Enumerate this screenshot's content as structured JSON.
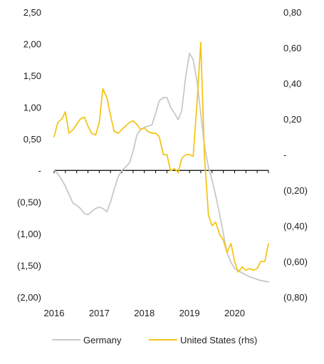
{
  "chart_data": {
    "type": "line",
    "title": "",
    "legend_position": "bottom",
    "grid": false,
    "x": {
      "tick_labels": [
        "2016",
        "2017",
        "2018",
        "2019",
        "2020"
      ],
      "range": [
        2016.0,
        2020.75
      ]
    },
    "y_left": {
      "range": [
        -2.0,
        2.5
      ],
      "ticks": [
        2.5,
        2.0,
        1.5,
        1.0,
        0.5,
        0.0,
        -0.5,
        -1.0,
        -1.5,
        -2.0
      ],
      "tick_labels": [
        "2,50",
        "2,00",
        "1,50",
        "1,00",
        "0,50",
        "-",
        "(0,50)",
        "(1,00)",
        "(1,50)",
        "(2,00)"
      ]
    },
    "y_right": {
      "range": [
        -0.8,
        0.8
      ],
      "ticks": [
        0.8,
        0.6,
        0.4,
        0.2,
        0.0,
        -0.2,
        -0.4,
        -0.6,
        -0.8
      ],
      "tick_labels": [
        "0,80",
        "0,60",
        "0,40",
        "0,20",
        "-",
        "(0,20)",
        "(0,40)",
        "(0,60)",
        "(0,80)"
      ]
    },
    "series": [
      {
        "name": "Germany",
        "axis": "left",
        "color": "#c8c8c8",
        "x": [
          2016.0,
          2016.08,
          2016.17,
          2016.25,
          2016.33,
          2016.42,
          2016.5,
          2016.58,
          2016.67,
          2016.75,
          2016.83,
          2016.92,
          2017.0,
          2017.08,
          2017.17,
          2017.25,
          2017.33,
          2017.42,
          2017.5,
          2017.58,
          2017.67,
          2017.75,
          2017.83,
          2017.92,
          2018.0,
          2018.08,
          2018.17,
          2018.25,
          2018.33,
          2018.42,
          2018.5,
          2018.58,
          2018.67,
          2018.75,
          2018.83,
          2018.92,
          2019.0,
          2019.08,
          2019.17,
          2019.25,
          2019.33,
          2019.42,
          2019.5,
          2019.58,
          2019.67,
          2019.75,
          2019.83,
          2019.92,
          2020.0,
          2020.08,
          2020.17,
          2020.25,
          2020.33,
          2020.42,
          2020.5,
          2020.58,
          2020.67,
          2020.75
        ],
        "values": [
          0.0,
          -0.05,
          -0.15,
          -0.25,
          -0.38,
          -0.52,
          -0.55,
          -0.6,
          -0.68,
          -0.7,
          -0.65,
          -0.6,
          -0.58,
          -0.6,
          -0.65,
          -0.5,
          -0.3,
          -0.1,
          0.0,
          0.05,
          0.12,
          0.3,
          0.55,
          0.65,
          0.68,
          0.7,
          0.72,
          0.9,
          1.1,
          1.15,
          1.15,
          1.0,
          0.9,
          0.8,
          0.95,
          1.5,
          1.85,
          1.75,
          1.4,
          0.9,
          0.4,
          0.05,
          -0.15,
          -0.4,
          -0.7,
          -1.0,
          -1.3,
          -1.45,
          -1.55,
          -1.58,
          -1.62,
          -1.65,
          -1.68,
          -1.7,
          -1.72,
          -1.74,
          -1.75,
          -1.76
        ]
      },
      {
        "name": "United States (rhs)",
        "axis": "right",
        "color": "#f5c518",
        "x": [
          2016.0,
          2016.08,
          2016.17,
          2016.25,
          2016.33,
          2016.42,
          2016.5,
          2016.58,
          2016.67,
          2016.75,
          2016.83,
          2016.92,
          2017.0,
          2017.08,
          2017.17,
          2017.25,
          2017.33,
          2017.42,
          2017.5,
          2017.58,
          2017.67,
          2017.75,
          2017.83,
          2017.92,
          2018.0,
          2018.08,
          2018.17,
          2018.25,
          2018.33,
          2018.42,
          2018.5,
          2018.58,
          2018.67,
          2018.75,
          2018.83,
          2018.92,
          2019.0,
          2019.08,
          2019.17,
          2019.25,
          2019.33,
          2019.42,
          2019.5,
          2019.58,
          2019.67,
          2019.75,
          2019.83,
          2019.92,
          2020.0,
          2020.08,
          2020.17,
          2020.25,
          2020.33,
          2020.42,
          2020.5,
          2020.58,
          2020.67,
          2020.75
        ],
        "values": [
          0.1,
          0.18,
          0.2,
          0.24,
          0.12,
          0.14,
          0.17,
          0.2,
          0.21,
          0.16,
          0.12,
          0.11,
          0.18,
          0.37,
          0.32,
          0.22,
          0.13,
          0.12,
          0.14,
          0.16,
          0.18,
          0.19,
          0.17,
          0.14,
          0.15,
          0.13,
          0.12,
          0.12,
          0.1,
          0.0,
          0.0,
          -0.09,
          -0.08,
          -0.1,
          -0.02,
          0.0,
          0.0,
          -0.01,
          0.3,
          0.63,
          0.0,
          -0.34,
          -0.4,
          -0.38,
          -0.45,
          -0.48,
          -0.55,
          -0.5,
          -0.6,
          -0.66,
          -0.63,
          -0.65,
          -0.64,
          -0.65,
          -0.64,
          -0.6,
          -0.6,
          -0.5
        ]
      }
    ]
  }
}
